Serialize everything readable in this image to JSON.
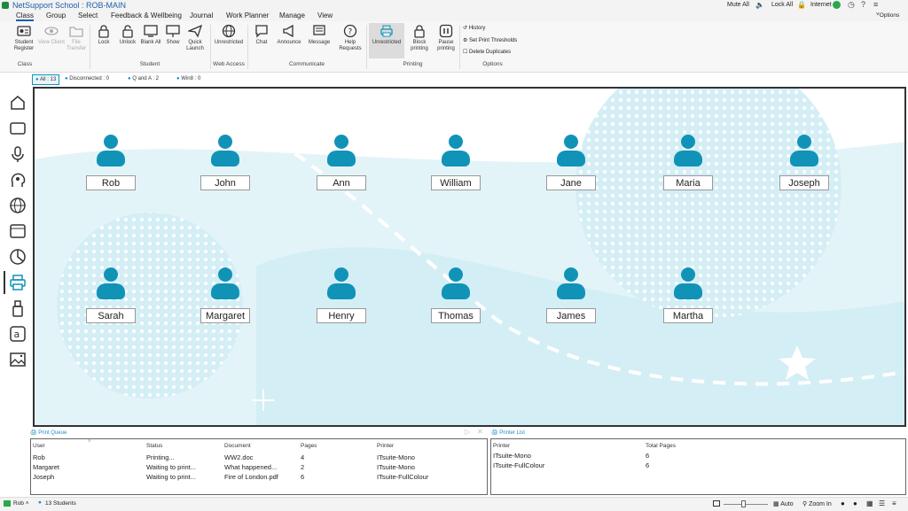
{
  "title": {
    "app": "NetSupport School : ROB-MAIN",
    "mute_all": "Mute All",
    "lock_all": "Lock All",
    "internet": "Internet",
    "options": "Options"
  },
  "menu": [
    "Class",
    "Group",
    "Select",
    "Feedback & Wellbeing",
    "Journal",
    "Work Planner",
    "Manage",
    "View"
  ],
  "ribbon": {
    "student_register": "Student Register",
    "view_client": "View Client",
    "file_transfer": "File Transfer",
    "lock": "Lock",
    "unlock": "Unlock",
    "blank_all": "Blank All",
    "show": "Show",
    "quick_launch": "Quick Launch",
    "unrestricted_web": "Unrestricted",
    "chat": "Chat",
    "announce": "Announce",
    "message": "Message",
    "help_requests": "Help Requests",
    "unrestricted_print": "Unrestricted",
    "block_printing": "Block printing",
    "pause_printing": "Pause printing",
    "history": "History",
    "set_print_thresholds": "Set Print Thresholds",
    "delete_duplicates": "Delete Duplicates",
    "groups": {
      "class": "Class",
      "student": "Student",
      "web_access": "Web Access",
      "communicate": "Communicate",
      "printing": "Printing",
      "options": "Options"
    }
  },
  "view_tabs": [
    "All : 13",
    "Disconnected : 0",
    "Q and A : 2",
    "Win8 : 0"
  ],
  "students": [
    "Rob",
    "John",
    "Ann",
    "William",
    "Jane",
    "Maria",
    "Joseph",
    "Sarah",
    "Margaret",
    "Henry",
    "Thomas",
    "James",
    "Martha"
  ],
  "print_queue": {
    "title": "Print Queue",
    "headers": [
      "User",
      "Status",
      "Document",
      "Pages",
      "Printer"
    ],
    "rows": [
      [
        "Rob",
        "Printing...",
        "WW2.doc",
        "4",
        "ITsuite-Mono"
      ],
      [
        "Margaret",
        "Waiting to print...",
        "What happened...",
        "2",
        "ITsuite-Mono"
      ],
      [
        "Joseph",
        "Waiting to print...",
        "Fire of London.pdf",
        "6",
        "ITsuite-FullColour"
      ]
    ]
  },
  "printer_list": {
    "title": "Printer List",
    "headers": [
      "Printer",
      "Total Pages"
    ],
    "rows": [
      [
        "ITsuite-Mono",
        "6"
      ],
      [
        "ITsuite-FullColour",
        "6"
      ]
    ]
  },
  "status": {
    "user": "Rob",
    "students": "13 Students",
    "auto": "Auto",
    "zoom_in": "Zoom In"
  },
  "colors": {
    "accent": "#1193b8",
    "title": "#1d5fa8"
  }
}
